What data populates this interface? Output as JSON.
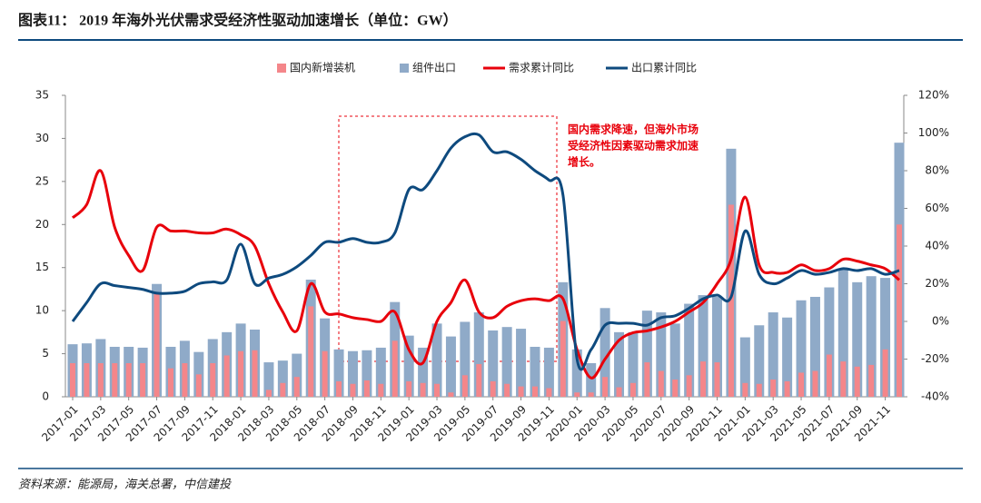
{
  "chart_data": {
    "type": "bar_line",
    "title": "图表11：  2019 年海外光伏需求受经济性驱动加速增长（单位：GW）",
    "source": "资料来源：能源局，海关总署，中信建投",
    "annotation": [
      "国内需求降速，但海外市场",
      "受经济性因素驱动需求加速",
      "增长。"
    ],
    "categories": [
      "2017-01",
      null,
      "2017-03",
      null,
      "2017-05",
      null,
      "2017-07",
      null,
      "2017-09",
      null,
      "2017-11",
      null,
      "2018-01",
      null,
      "2018-03",
      null,
      "2018-05",
      null,
      "2018-07",
      null,
      "2018-09",
      null,
      "2018-11",
      null,
      "2019-01",
      null,
      "2019-03",
      null,
      "2019-05",
      null,
      "2019-07",
      null,
      "2019-09",
      null,
      "2019-11",
      null,
      "2020-01",
      null,
      "2020-03",
      null,
      "2020-05",
      null,
      "2020-07",
      null,
      "2020-09",
      null,
      "2020-11",
      null,
      "2021-01",
      null,
      "2021-03",
      null,
      "2021-05",
      null,
      "2021-07",
      null,
      "2021-09",
      null,
      "2021-11",
      null
    ],
    "series": [
      {
        "name": "国内新增装机",
        "color": "#f4868a",
        "kind": "bar",
        "values": [
          3.9,
          3.9,
          3.9,
          3.9,
          3.9,
          3.9,
          12,
          3.3,
          3.9,
          2.6,
          3.9,
          4.8,
          5.3,
          5.4,
          0.8,
          1.6,
          2.3,
          10.5,
          5.3,
          1.8,
          1.5,
          1.9,
          1.5,
          6.5,
          1.8,
          1.6,
          1.5,
          0.5,
          2.5,
          3.8,
          1.8,
          1.5,
          1.2,
          1.2,
          1.0,
          8.8,
          0.5,
          0.5,
          2.3,
          1.1,
          1.6,
          4.0,
          3.0,
          2.0,
          2.5,
          4.1,
          4.0,
          22.3,
          1.6,
          1.5,
          2.0,
          1.8,
          2.8,
          3.0,
          4.9,
          4.1,
          3.5,
          3.7,
          5.5,
          20.0
        ]
      },
      {
        "name": "组件出口",
        "color": "#8faac8",
        "kind": "bar",
        "values": [
          6.1,
          6.2,
          6.7,
          5.8,
          5.8,
          5.7,
          13.1,
          5.8,
          6.5,
          5.2,
          6.7,
          7.5,
          8.5,
          7.8,
          4.0,
          4.2,
          5.0,
          13.6,
          9.1,
          5.5,
          5.3,
          5.4,
          5.7,
          11.0,
          7.1,
          5.7,
          8.5,
          7.0,
          8.7,
          9.8,
          7.7,
          8.1,
          7.9,
          5.8,
          5.7,
          13.3,
          5.5,
          3.9,
          10.3,
          7.5,
          7.5,
          10.0,
          9.8,
          8.5,
          10.8,
          11.8,
          11.6,
          28.8,
          6.9,
          8.3,
          9.8,
          9.2,
          11.2,
          11.6,
          12.7,
          14.8,
          13.3,
          14.0,
          13.8,
          29.5
        ]
      },
      {
        "name": "需求累计同比",
        "color": "#e8000b",
        "kind": "line",
        "axis": "y2",
        "values": [
          55,
          62,
          80,
          50,
          35,
          27,
          50,
          48,
          48,
          47,
          47,
          49,
          46,
          40,
          20,
          5,
          -5,
          20,
          5,
          4,
          2,
          1,
          0,
          5,
          -15,
          -22,
          0,
          10,
          22,
          5,
          2,
          8,
          11,
          12,
          11,
          12,
          -15,
          -30,
          -20,
          -10,
          -6,
          -5,
          -3,
          0,
          5,
          10,
          20,
          33,
          66,
          30,
          26,
          26,
          30,
          27,
          28,
          33,
          32,
          30,
          28,
          22
        ]
      },
      {
        "name": "出口累计同比",
        "color": "#0e4a7e",
        "kind": "line",
        "axis": "y2",
        "values": [
          0,
          10,
          20,
          19,
          18,
          17,
          15,
          15,
          16,
          20,
          21,
          22,
          41,
          20,
          23,
          25,
          29,
          35,
          42,
          42,
          44,
          42,
          42,
          47,
          70,
          70,
          80,
          92,
          98,
          99,
          90,
          90,
          86,
          80,
          75,
          67,
          -20,
          -15,
          -2,
          -1,
          -1,
          -2,
          2,
          3,
          7,
          12,
          14,
          13,
          48,
          25,
          20,
          23,
          27,
          25,
          26,
          28,
          27,
          28,
          25,
          27
        ]
      }
    ],
    "ylim": [
      0,
      35
    ],
    "yticks": [
      0,
      5,
      10,
      15,
      20,
      25,
      30,
      35
    ],
    "y2lim": [
      -40,
      120
    ],
    "y2ticks": [
      {
        "value": -40,
        "label": "-40%"
      },
      {
        "value": -20,
        "label": "-20%"
      },
      {
        "value": 0,
        "label": "0%"
      },
      {
        "value": 20,
        "label": "20%"
      },
      {
        "value": 40,
        "label": "40%"
      },
      {
        "value": 60,
        "label": "60%"
      },
      {
        "value": 80,
        "label": "80%"
      },
      {
        "value": 100,
        "label": "100%"
      },
      {
        "value": 120,
        "label": "120%"
      }
    ],
    "legend": "top"
  }
}
